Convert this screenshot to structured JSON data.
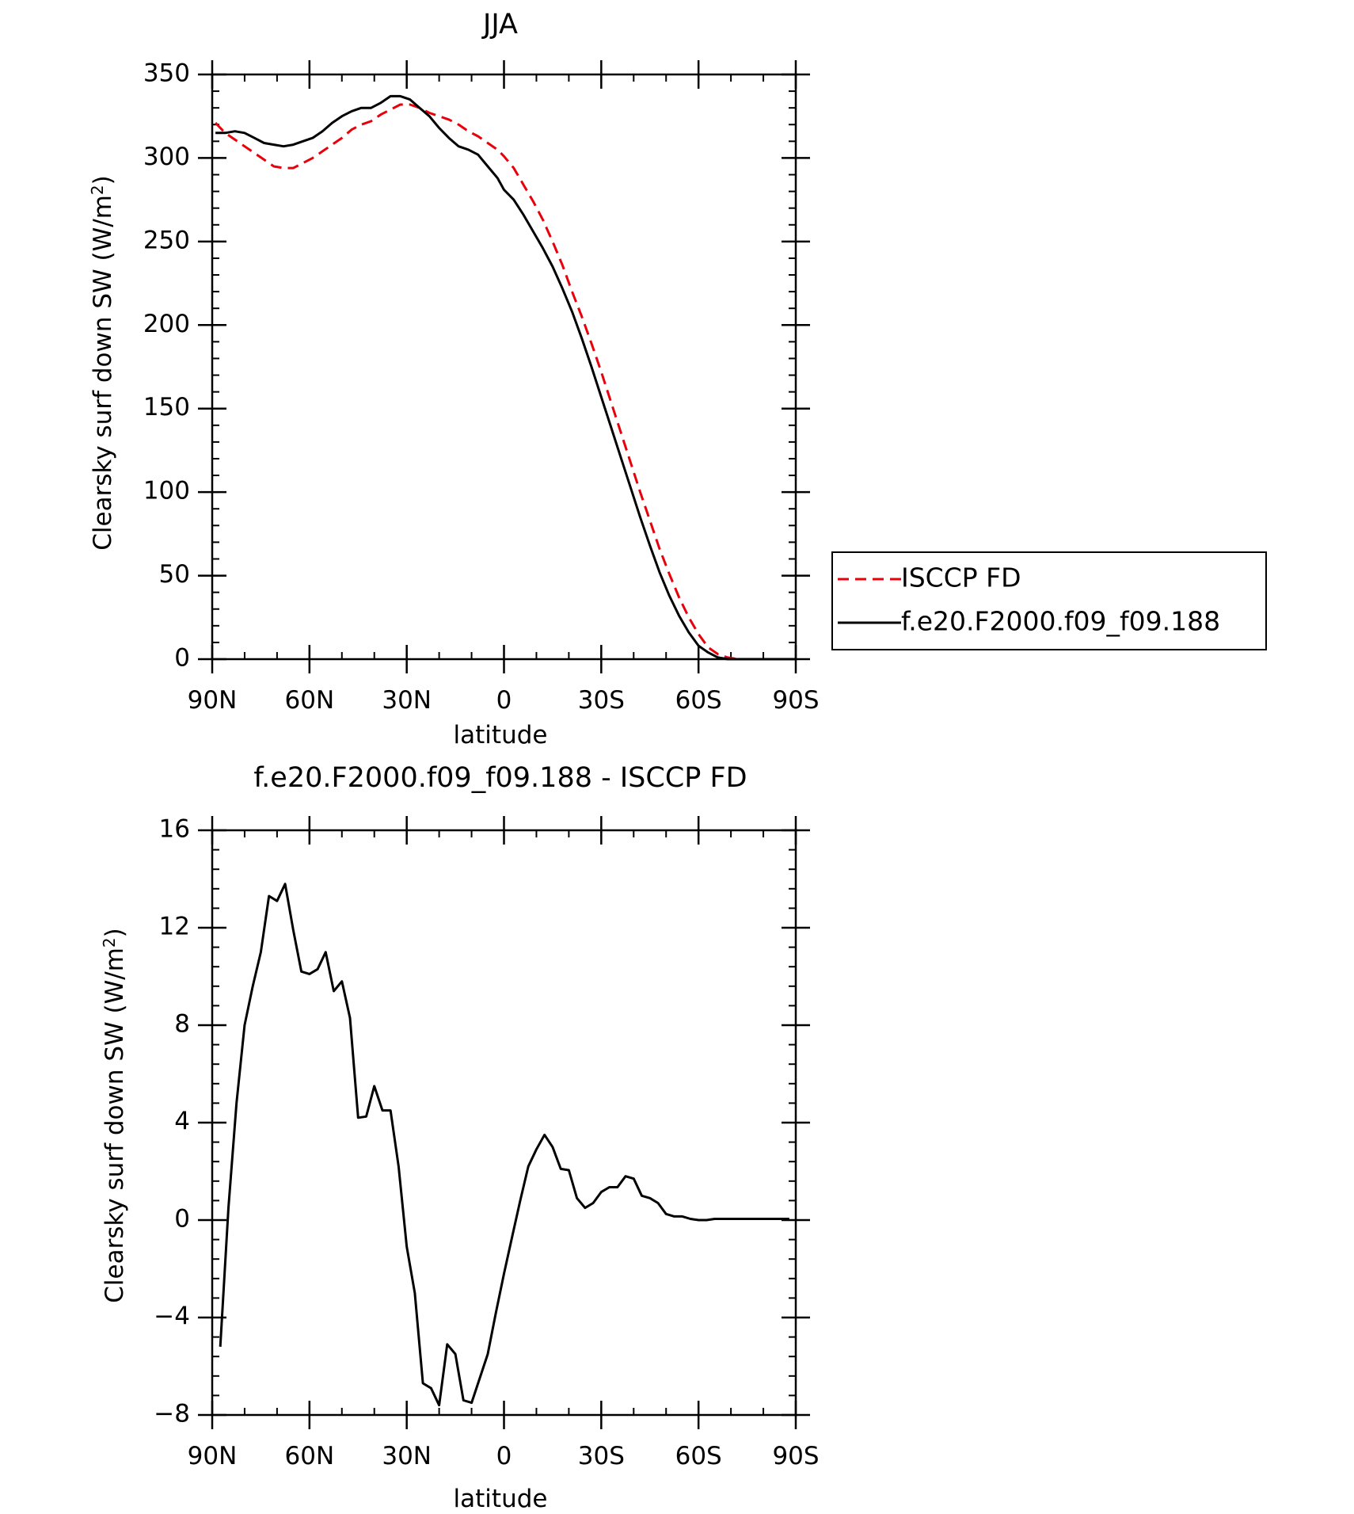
{
  "chart_data": [
    {
      "type": "line",
      "title": "JJA",
      "xlabel": "latitude",
      "ylabel_main": "Clearsky surf down SW (W/m",
      "ylabel_sup": "2",
      "ylabel_close": ")",
      "xlim": [
        -90,
        90
      ],
      "ylim": [
        0,
        350
      ],
      "xticks": [
        -90,
        -60,
        -30,
        0,
        30,
        60,
        90
      ],
      "xticklabels": [
        "90N",
        "60N",
        "30N",
        "0",
        "30S",
        "60S",
        "90S"
      ],
      "yticks": [
        0,
        50,
        100,
        150,
        200,
        250,
        300,
        350
      ],
      "yticklabels": [
        "0",
        "50",
        "100",
        "150",
        "200",
        "250",
        "300",
        "350"
      ],
      "legend_position": "right",
      "series": [
        {
          "name": "ISCCP FD",
          "color": "#e8000b",
          "dash": "dashed",
          "points": [
            [
              -89,
              321
            ],
            [
              -86,
              315
            ],
            [
              -83,
              311
            ],
            [
              -80,
              307
            ],
            [
              -77,
              303
            ],
            [
              -74,
              299
            ],
            [
              -71,
              295
            ],
            [
              -68,
              294
            ],
            [
              -65,
              294
            ],
            [
              -62,
              297
            ],
            [
              -59,
              300
            ],
            [
              -56,
              304
            ],
            [
              -53,
              308
            ],
            [
              -50,
              312
            ],
            [
              -47,
              317
            ],
            [
              -44,
              320
            ],
            [
              -41,
              322
            ],
            [
              -38,
              326
            ],
            [
              -35,
              329
            ],
            [
              -32,
              332
            ],
            [
              -29,
              332
            ],
            [
              -26,
              330
            ],
            [
              -23,
              327
            ],
            [
              -20,
              325
            ],
            [
              -17,
              323
            ],
            [
              -14,
              320
            ],
            [
              -11,
              316
            ],
            [
              -8,
              313
            ],
            [
              -5,
              309
            ],
            [
              -2,
              305
            ],
            [
              0,
              301
            ],
            [
              3,
              294
            ],
            [
              6,
              284
            ],
            [
              9,
              274
            ],
            [
              12,
              263
            ],
            [
              15,
              250
            ],
            [
              18,
              236
            ],
            [
              21,
              220
            ],
            [
              24,
              205
            ],
            [
              27,
              189
            ],
            [
              30,
              172
            ],
            [
              33,
              154
            ],
            [
              36,
              136
            ],
            [
              39,
              118
            ],
            [
              42,
              100
            ],
            [
              45,
              83
            ],
            [
              48,
              66
            ],
            [
              51,
              51
            ],
            [
              54,
              37
            ],
            [
              57,
              25
            ],
            [
              60,
              15
            ],
            [
              63,
              7
            ],
            [
              66,
              3
            ],
            [
              69,
              1
            ],
            [
              72,
              0
            ],
            [
              78,
              0
            ],
            [
              84,
              0
            ],
            [
              90,
              0
            ]
          ]
        },
        {
          "name": "f.e20.F2000.f09_f09.188",
          "color": "#000000",
          "dash": "solid",
          "points": [
            [
              -89,
              315
            ],
            [
              -86,
              315
            ],
            [
              -83,
              316
            ],
            [
              -80,
              315
            ],
            [
              -77,
              312
            ],
            [
              -74,
              309
            ],
            [
              -71,
              308
            ],
            [
              -68,
              307
            ],
            [
              -65,
              308
            ],
            [
              -62,
              310
            ],
            [
              -59,
              312
            ],
            [
              -56,
              316
            ],
            [
              -53,
              321
            ],
            [
              -50,
              325
            ],
            [
              -47,
              328
            ],
            [
              -44,
              330
            ],
            [
              -41,
              330
            ],
            [
              -38,
              333
            ],
            [
              -35,
              337
            ],
            [
              -32,
              337
            ],
            [
              -29,
              335
            ],
            [
              -26,
              330
            ],
            [
              -23,
              325
            ],
            [
              -20,
              318
            ],
            [
              -17,
              312
            ],
            [
              -14,
              307
            ],
            [
              -11,
              305
            ],
            [
              -8,
              302
            ],
            [
              -5,
              295
            ],
            [
              -2,
              288
            ],
            [
              0,
              281
            ],
            [
              3,
              275
            ],
            [
              6,
              266
            ],
            [
              9,
              256
            ],
            [
              12,
              246
            ],
            [
              15,
              235
            ],
            [
              18,
              222
            ],
            [
              21,
              208
            ],
            [
              24,
              192
            ],
            [
              27,
              175
            ],
            [
              30,
              157
            ],
            [
              33,
              139
            ],
            [
              36,
              121
            ],
            [
              39,
              103
            ],
            [
              42,
              85
            ],
            [
              45,
              68
            ],
            [
              48,
              52
            ],
            [
              51,
              38
            ],
            [
              54,
              26
            ],
            [
              57,
              16
            ],
            [
              60,
              8
            ],
            [
              63,
              4
            ],
            [
              66,
              1
            ],
            [
              69,
              0
            ],
            [
              72,
              0
            ],
            [
              78,
              0
            ],
            [
              84,
              0
            ],
            [
              90,
              0
            ]
          ]
        }
      ]
    },
    {
      "type": "line",
      "title": "f.e20.F2000.f09_f09.188 - ISCCP FD",
      "xlabel": "latitude",
      "ylabel_main": "Clearsky surf down SW (W/m",
      "ylabel_sup": "2",
      "ylabel_close": ")",
      "xlim": [
        -90,
        90
      ],
      "ylim": [
        -8,
        16
      ],
      "xticks": [
        -90,
        -60,
        -30,
        0,
        30,
        60,
        90
      ],
      "xticklabels": [
        "90N",
        "60N",
        "30N",
        "0",
        "30S",
        "60S",
        "90S"
      ],
      "yticks": [
        -8,
        -4,
        0,
        4,
        8,
        12,
        16
      ],
      "yticklabels": [
        "−8",
        "−4",
        "0",
        "4",
        "8",
        "12",
        "16"
      ],
      "series": [
        {
          "color": "#000000",
          "dash": "solid",
          "points": [
            [
              -87.5,
              -5.2
            ],
            [
              -85,
              0.5
            ],
            [
              -82.5,
              4.8
            ],
            [
              -80,
              8.0
            ],
            [
              -77.5,
              9.6
            ],
            [
              -75,
              11.0
            ],
            [
              -72.5,
              13.3
            ],
            [
              -70,
              13.1
            ],
            [
              -67.5,
              13.8
            ],
            [
              -65,
              11.9
            ],
            [
              -62.5,
              10.2
            ],
            [
              -60,
              10.1
            ],
            [
              -57.5,
              10.3
            ],
            [
              -55,
              11.0
            ],
            [
              -52.5,
              9.4
            ],
            [
              -50,
              9.8
            ],
            [
              -47.5,
              8.3
            ],
            [
              -45,
              4.2
            ],
            [
              -42.5,
              4.25
            ],
            [
              -40,
              5.5
            ],
            [
              -37.5,
              4.5
            ],
            [
              -35,
              4.5
            ],
            [
              -32.5,
              2.2
            ],
            [
              -30,
              -1.1
            ],
            [
              -27.5,
              -3.0
            ],
            [
              -25,
              -6.7
            ],
            [
              -22.5,
              -6.9
            ],
            [
              -20,
              -7.6
            ],
            [
              -17.5,
              -5.1
            ],
            [
              -15,
              -5.5
            ],
            [
              -12.5,
              -7.4
            ],
            [
              -10,
              -7.5
            ],
            [
              -7.5,
              -6.5
            ],
            [
              -5,
              -5.5
            ],
            [
              -2.5,
              -3.8
            ],
            [
              0,
              -2.2
            ],
            [
              2.5,
              -0.7
            ],
            [
              5,
              0.8
            ],
            [
              7.5,
              2.2
            ],
            [
              10,
              2.9
            ],
            [
              12.5,
              3.5
            ],
            [
              15,
              3.0
            ],
            [
              17.5,
              2.1
            ],
            [
              20,
              2.05
            ],
            [
              22.5,
              0.9
            ],
            [
              25,
              0.5
            ],
            [
              27.5,
              0.7
            ],
            [
              30,
              1.15
            ],
            [
              32.5,
              1.35
            ],
            [
              35,
              1.35
            ],
            [
              37.5,
              1.8
            ],
            [
              40,
              1.7
            ],
            [
              42.5,
              1.0
            ],
            [
              45,
              0.9
            ],
            [
              47.5,
              0.7
            ],
            [
              50,
              0.25
            ],
            [
              52.5,
              0.15
            ],
            [
              55,
              0.15
            ],
            [
              57.5,
              0.05
            ],
            [
              60,
              0.0
            ],
            [
              62.5,
              0.0
            ],
            [
              65,
              0.05
            ],
            [
              70,
              0.05
            ],
            [
              88,
              0.05
            ]
          ]
        }
      ]
    }
  ]
}
